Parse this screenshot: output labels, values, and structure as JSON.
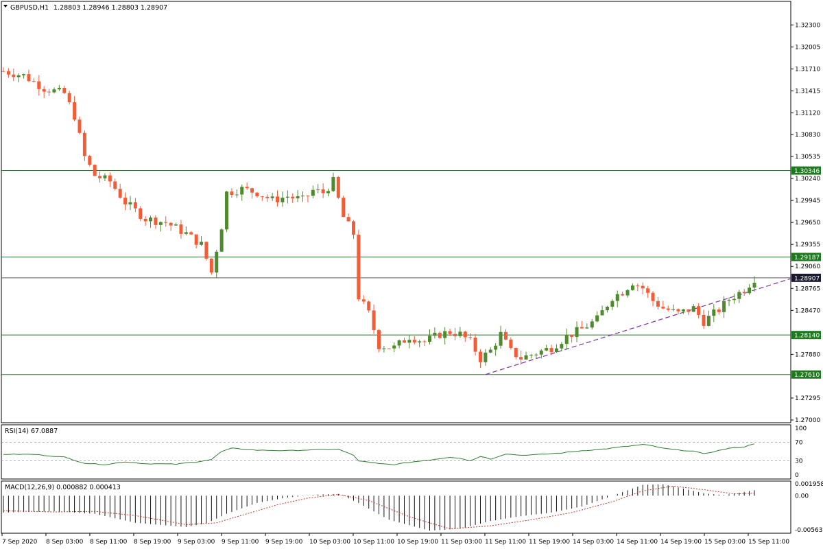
{
  "header": {
    "symbol": "GBPUSD,H1",
    "ohlc": "1.28803 1.28946 1.28803 1.28907",
    "rsi": "RSI(14) 67.0887",
    "macd": "MACD(12,26,9) 0.000882 0.000413"
  },
  "colors": {
    "bull": "#4f8a2e",
    "bear": "#f25c37",
    "level_line": "#2d6b2d",
    "price_line": "#555555",
    "trend": "#7a2ea8",
    "rsi_line": "#2e7d32",
    "macd_signal": "#c0392b",
    "hist": "#111111",
    "level_tag_bg": "#1f7a1f",
    "price_tag_bg": "#1a1a2e"
  },
  "chart_data": [
    {
      "type": "candlestick",
      "title": "GBPUSD,H1",
      "ylim": [
        1.27,
        1.3245
      ],
      "y_ticks": [
        "1.32300",
        "1.32005",
        "1.31710",
        "1.31415",
        "1.31120",
        "1.30830",
        "1.30535",
        "1.30240",
        "1.29945",
        "1.29650",
        "1.29355",
        "1.29060",
        "1.28765",
        "1.28470",
        "1.27880",
        "1.27295",
        "1.27000"
      ],
      "x_ticks": [
        "7 Sep 2020",
        "8 Sep 03:00",
        "8 Sep 11:00",
        "8 Sep 19:00",
        "9 Sep 03:00",
        "9 Sep 11:00",
        "9 Sep 19:00",
        "10 Sep 03:00",
        "10 Sep 11:00",
        "10 Sep 19:00",
        "11 Sep 03:00",
        "11 Sep 11:00",
        "11 Sep 19:00",
        "14 Sep 03:00",
        "14 Sep 11:00",
        "14 Sep 19:00",
        "15 Sep 03:00",
        "15 Sep 11:00"
      ],
      "levels": [
        {
          "value": 1.30346,
          "label": "1.30346"
        },
        {
          "value": 1.29187,
          "label": "1.29187"
        },
        {
          "value": 1.2814,
          "label": "1.28140"
        },
        {
          "value": 1.2761,
          "label": "1.27610"
        }
      ],
      "current_price": {
        "value": 1.28907,
        "label": "1.28907"
      },
      "trendline": {
        "from": [
          95,
          1.2761
        ],
        "to": [
          124,
          1.2823
        ]
      },
      "anchors": [
        [
          0,
          1.3168
        ],
        [
          4,
          1.3162
        ],
        [
          8,
          1.3145
        ],
        [
          12,
          1.3138
        ],
        [
          14,
          1.3108
        ],
        [
          16,
          1.3053
        ],
        [
          18,
          1.3028
        ],
        [
          21,
          1.302
        ],
        [
          24,
          1.2992
        ],
        [
          28,
          1.297
        ],
        [
          32,
          1.2965
        ],
        [
          36,
          1.295
        ],
        [
          39,
          1.2935
        ],
        [
          41,
          1.2898
        ],
        [
          43,
          1.296
        ],
        [
          44,
          1.3005
        ],
        [
          47,
          1.301
        ],
        [
          50,
          1.3005
        ],
        [
          53,
          1.2995
        ],
        [
          56,
          1.3
        ],
        [
          59,
          1.2995
        ],
        [
          61,
          1.3008
        ],
        [
          63,
          1.3005
        ],
        [
          65,
          1.302
        ],
        [
          67,
          1.2972
        ],
        [
          69,
          1.295
        ],
        [
          70,
          1.2865
        ],
        [
          72,
          1.2843
        ],
        [
          74,
          1.28
        ],
        [
          77,
          1.2797
        ],
        [
          80,
          1.2812
        ],
        [
          83,
          1.2805
        ],
        [
          86,
          1.2815
        ],
        [
          88,
          1.2818
        ],
        [
          90,
          1.2815
        ],
        [
          92,
          1.2805
        ],
        [
          94,
          1.2782
        ],
        [
          96,
          1.2793
        ],
        [
          98,
          1.2815
        ],
        [
          100,
          1.2792
        ],
        [
          102,
          1.2783
        ],
        [
          105,
          1.279
        ],
        [
          108,
          1.2797
        ],
        [
          111,
          1.2812
        ],
        [
          114,
          1.2822
        ],
        [
          117,
          1.2835
        ],
        [
          120,
          1.2865
        ],
        [
          122,
          1.2872
        ],
        [
          124,
          1.2885
        ],
        [
          126,
          1.2877
        ],
        [
          128,
          1.286
        ],
        [
          130,
          1.285
        ],
        [
          133,
          1.2843
        ],
        [
          136,
          1.285
        ],
        [
          138,
          1.2832
        ],
        [
          141,
          1.2848
        ],
        [
          143,
          1.2862
        ],
        [
          146,
          1.2875
        ],
        [
          148,
          1.289
        ]
      ]
    },
    {
      "type": "line",
      "title": "RSI(14) 67.0887",
      "ylim": [
        0,
        100
      ],
      "y_ticks": [
        "100",
        "70",
        "30",
        "0"
      ],
      "levels": [
        70,
        30
      ],
      "anchors": [
        [
          0,
          44
        ],
        [
          6,
          44
        ],
        [
          12,
          38
        ],
        [
          16,
          25
        ],
        [
          20,
          22
        ],
        [
          24,
          28
        ],
        [
          28,
          24
        ],
        [
          34,
          23
        ],
        [
          38,
          28
        ],
        [
          41,
          33
        ],
        [
          43,
          50
        ],
        [
          45,
          57
        ],
        [
          50,
          53
        ],
        [
          56,
          52
        ],
        [
          62,
          54
        ],
        [
          66,
          55
        ],
        [
          69,
          42
        ],
        [
          70,
          30
        ],
        [
          74,
          24
        ],
        [
          77,
          22
        ],
        [
          80,
          27
        ],
        [
          84,
          32
        ],
        [
          88,
          38
        ],
        [
          90,
          36
        ],
        [
          92,
          30
        ],
        [
          94,
          40
        ],
        [
          96,
          34
        ],
        [
          99,
          45
        ],
        [
          102,
          42
        ],
        [
          106,
          44
        ],
        [
          110,
          47
        ],
        [
          114,
          52
        ],
        [
          118,
          55
        ],
        [
          122,
          60
        ],
        [
          126,
          65
        ],
        [
          128,
          62
        ],
        [
          130,
          57
        ],
        [
          133,
          53
        ],
        [
          136,
          51
        ],
        [
          138,
          45
        ],
        [
          140,
          50
        ],
        [
          143,
          57
        ],
        [
          146,
          60
        ],
        [
          148,
          67
        ]
      ]
    },
    {
      "type": "bar",
      "title": "MACD(12,26,9) 0.000882 0.000413",
      "ylim": [
        -0.006,
        0.0022
      ],
      "y_ticks": [
        "0.001958",
        "0.00",
        "-0.005632"
      ],
      "macd_anchors": [
        [
          0,
          -0.0028
        ],
        [
          10,
          -0.0026
        ],
        [
          18,
          -0.003
        ],
        [
          26,
          -0.0045
        ],
        [
          36,
          -0.0052
        ],
        [
          40,
          -0.0046
        ],
        [
          44,
          -0.003
        ],
        [
          50,
          -0.0012
        ],
        [
          56,
          -0.0003
        ],
        [
          62,
          0.0002
        ],
        [
          66,
          0.0003
        ],
        [
          70,
          -0.0012
        ],
        [
          76,
          -0.004
        ],
        [
          84,
          -0.0058
        ],
        [
          90,
          -0.0055
        ],
        [
          96,
          -0.0042
        ],
        [
          102,
          -0.0034
        ],
        [
          108,
          -0.0028
        ],
        [
          114,
          -0.0018
        ],
        [
          120,
          0.0
        ],
        [
          126,
          0.0018
        ],
        [
          130,
          0.0019
        ],
        [
          134,
          0.0012
        ],
        [
          138,
          0.0004
        ],
        [
          142,
          0.0001
        ],
        [
          148,
          0.0009
        ]
      ],
      "signal_anchors": [
        [
          0,
          -0.0025
        ],
        [
          10,
          -0.0027
        ],
        [
          18,
          -0.0026
        ],
        [
          26,
          -0.0033
        ],
        [
          36,
          -0.0048
        ],
        [
          42,
          -0.0045
        ],
        [
          48,
          -0.003
        ],
        [
          54,
          -0.0015
        ],
        [
          60,
          -0.0004
        ],
        [
          66,
          0.0002
        ],
        [
          72,
          -0.0008
        ],
        [
          80,
          -0.0035
        ],
        [
          88,
          -0.0055
        ],
        [
          96,
          -0.005
        ],
        [
          104,
          -0.004
        ],
        [
          112,
          -0.0028
        ],
        [
          120,
          -0.001
        ],
        [
          126,
          0.0008
        ],
        [
          132,
          0.0016
        ],
        [
          138,
          0.001
        ],
        [
          144,
          0.0003
        ],
        [
          148,
          0.0004
        ]
      ]
    }
  ]
}
